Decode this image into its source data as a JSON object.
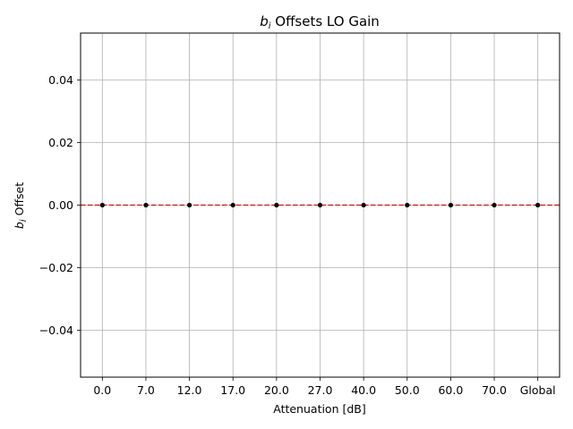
{
  "chart_data": {
    "type": "scatter",
    "title_var": "b",
    "title_sub": "i",
    "title_rest": " Offsets LO Gain",
    "xlabel": "Attenuation [dB]",
    "ylabel_var": "b",
    "ylabel_sub": "i",
    "ylabel_rest": " Offset",
    "categories": [
      "0.0",
      "7.0",
      "12.0",
      "17.0",
      "20.0",
      "27.0",
      "40.0",
      "50.0",
      "60.0",
      "70.0",
      "Global"
    ],
    "values": [
      0,
      0,
      0,
      0,
      0,
      0,
      0,
      0,
      0,
      0,
      0
    ],
    "yticks": [
      -0.04,
      -0.02,
      0.0,
      0.02,
      0.04
    ],
    "ytick_labels": [
      "−0.04",
      "−0.02",
      "0.00",
      "0.02",
      "0.04"
    ],
    "ylim": [
      -0.055,
      0.055
    ],
    "grid": true,
    "reference_line": {
      "y": 0,
      "style": "dashed",
      "color": "#d62728"
    },
    "marker_color": "#000000"
  }
}
